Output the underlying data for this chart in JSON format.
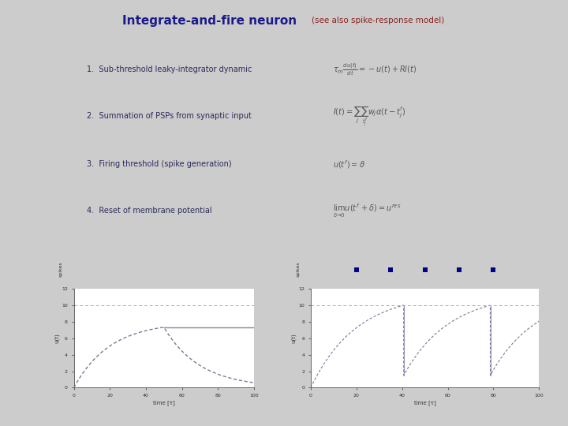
{
  "bg_color": "#cccccc",
  "title_main": "Integrate-and-fire neuron",
  "title_sub": "(see also spike-response model)",
  "title_main_color": "#1a1a8c",
  "title_sub_color": "#8b2020",
  "title_fontsize": 11,
  "title_sub_fontsize": 7.5,
  "box_text_color": "#2a2a5a",
  "eq_color": "#555555",
  "box_items": [
    "1.  Sub-threshold leaky-integrator dynamic",
    "2.  Summation of PSPs from synaptic input",
    "3.  Firing threshold (spike generation)",
    "4.  Reset of membrane potential"
  ],
  "eq1": "$\\tau_m \\frac{du(t)}{dt} = -u(t) + RI(t)$",
  "eq2": "$I(t) = \\sum_j \\sum_{t_j^f} w_j \\alpha(t - t_j^f)$",
  "eq3": "$u(t^f) = \\vartheta$",
  "eq4": "$\\lim_{\\delta \\to 0} u(t^f + \\delta) = u^{res}$",
  "tau_m": 20,
  "R": 1,
  "I_const": 8,
  "t_switch": 50,
  "threshold": 10,
  "reset": 1.5,
  "spike_times_right": [
    20,
    35,
    50,
    65,
    80
  ],
  "spike_dot_color": "#00008b",
  "line_color_left": "#7a7a9a",
  "line_color_right": "#7a7a9a",
  "threshold_line_color": "#aaaaaa",
  "steady_line_color": "#888888"
}
